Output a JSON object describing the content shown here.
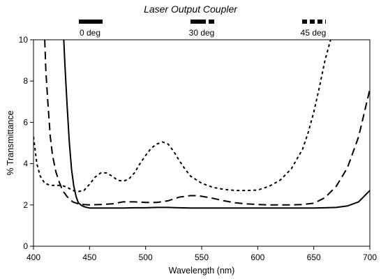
{
  "chart_data": {
    "type": "line",
    "title": "Laser Output Coupler",
    "xlabel": "Wavelength (nm)",
    "ylabel": "% Transmittance",
    "xlim": [
      400,
      700
    ],
    "ylim": [
      0,
      10
    ],
    "xticks": [
      400,
      450,
      500,
      550,
      600,
      650,
      700
    ],
    "yticks": [
      0,
      2,
      4,
      6,
      8,
      10
    ],
    "grid": false,
    "legend_position": "top",
    "series": [
      {
        "name": "0 deg",
        "style": "solid",
        "color": "#000000",
        "x": [
          427,
          428,
          430,
          432,
          434,
          436,
          438,
          440,
          443,
          446,
          450,
          455,
          460,
          470,
          480,
          490,
          500,
          510,
          520,
          530,
          540,
          550,
          560,
          570,
          580,
          590,
          600,
          610,
          620,
          630,
          640,
          650,
          660,
          670,
          680,
          690,
          700
        ],
        "y": [
          10.0,
          8.8,
          6.8,
          5.0,
          3.7,
          2.9,
          2.4,
          2.1,
          1.97,
          1.9,
          1.85,
          1.85,
          1.85,
          1.85,
          1.85,
          1.86,
          1.86,
          1.88,
          1.88,
          1.86,
          1.85,
          1.85,
          1.85,
          1.85,
          1.85,
          1.85,
          1.85,
          1.85,
          1.85,
          1.85,
          1.85,
          1.85,
          1.86,
          1.88,
          1.95,
          2.15,
          2.7
        ]
      },
      {
        "name": "30 deg",
        "style": "dashed",
        "color": "#000000",
        "x": [
          410,
          411,
          413,
          415,
          417,
          420,
          423,
          426,
          430,
          435,
          440,
          445,
          450,
          460,
          470,
          480,
          490,
          500,
          510,
          520,
          530,
          540,
          545,
          550,
          560,
          570,
          580,
          590,
          600,
          610,
          620,
          630,
          640,
          650,
          660,
          670,
          680,
          690,
          700
        ],
        "y": [
          10.0,
          8.5,
          6.8,
          5.3,
          4.4,
          3.6,
          3.1,
          2.7,
          2.4,
          2.15,
          2.05,
          2.02,
          2.0,
          2.02,
          2.05,
          2.15,
          2.15,
          2.12,
          2.12,
          2.2,
          2.38,
          2.45,
          2.45,
          2.42,
          2.32,
          2.2,
          2.1,
          2.05,
          2.02,
          2.0,
          2.0,
          2.0,
          2.02,
          2.08,
          2.35,
          2.9,
          3.8,
          5.3,
          7.6
        ]
      },
      {
        "name": "45 deg",
        "style": "dotted",
        "color": "#000000",
        "x": [
          400,
          403,
          406,
          410,
          415,
          420,
          425,
          430,
          435,
          440,
          445,
          450,
          455,
          460,
          465,
          470,
          475,
          480,
          485,
          490,
          495,
          500,
          505,
          510,
          515,
          520,
          525,
          530,
          535,
          540,
          550,
          560,
          570,
          580,
          590,
          600,
          610,
          620,
          630,
          640,
          645,
          650,
          655,
          660,
          665
        ],
        "y": [
          5.3,
          4.0,
          3.4,
          3.05,
          2.95,
          2.95,
          2.95,
          2.85,
          2.7,
          2.65,
          2.7,
          3.0,
          3.35,
          3.55,
          3.55,
          3.4,
          3.2,
          3.15,
          3.25,
          3.55,
          4.0,
          4.4,
          4.75,
          4.95,
          5.05,
          4.95,
          4.6,
          4.15,
          3.75,
          3.4,
          3.05,
          2.85,
          2.75,
          2.7,
          2.7,
          2.72,
          2.9,
          3.2,
          3.75,
          4.7,
          5.5,
          6.5,
          7.7,
          9.0,
          10.0
        ]
      }
    ]
  }
}
